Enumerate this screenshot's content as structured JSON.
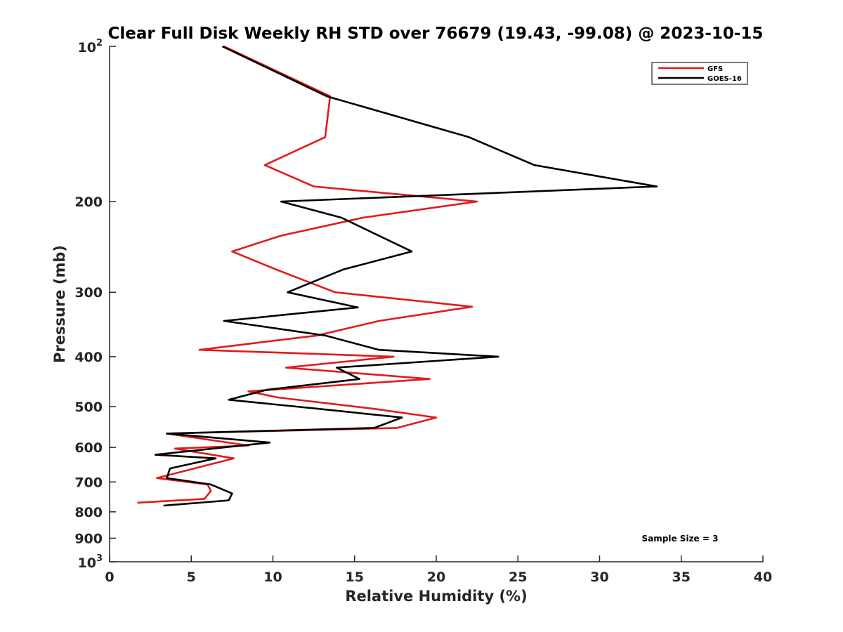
{
  "chart_data": {
    "type": "line",
    "title": "Clear Full Disk Weekly RH STD over 76679 (19.43, -99.08) @ 2023-10-15",
    "xlabel": "Relative Humidity (%)",
    "ylabel": "Pressure (mb)",
    "xlim": [
      0,
      40
    ],
    "ylim": [
      100,
      1000
    ],
    "y_scale": "log",
    "y_reversed": true,
    "x_ticks": [
      "0",
      "5",
      "10",
      "15",
      "20",
      "25",
      "30",
      "35",
      "40"
    ],
    "y_ticks": [
      {
        "value": 100,
        "base": "10",
        "exp": "2"
      },
      {
        "value": 200,
        "label": "200"
      },
      {
        "value": 300,
        "label": "300"
      },
      {
        "value": 400,
        "label": "400"
      },
      {
        "value": 500,
        "label": "500"
      },
      {
        "value": 600,
        "label": "600"
      },
      {
        "value": 700,
        "label": "700"
      },
      {
        "value": 800,
        "label": "800"
      },
      {
        "value": 900,
        "label": "900"
      },
      {
        "value": 1000,
        "base": "10",
        "exp": "3"
      }
    ],
    "grid": false,
    "legend_position": "top-right",
    "annotation": "Sample Size = 3",
    "series": [
      {
        "name": "GFS",
        "color": "#e31a1c",
        "points": [
          [
            7.0,
            100
          ],
          [
            13.5,
            125
          ],
          [
            13.2,
            150
          ],
          [
            9.5,
            170
          ],
          [
            12.5,
            187
          ],
          [
            22.5,
            200
          ],
          [
            15.5,
            215
          ],
          [
            10.5,
            233
          ],
          [
            7.5,
            250
          ],
          [
            10.2,
            271
          ],
          [
            13.8,
            300
          ],
          [
            22.2,
            320
          ],
          [
            16.5,
            341
          ],
          [
            12.7,
            364
          ],
          [
            5.5,
            388
          ],
          [
            17.4,
            400
          ],
          [
            10.8,
            420
          ],
          [
            19.6,
            442
          ],
          [
            8.5,
            467
          ],
          [
            10.3,
            480
          ],
          [
            16.2,
            505
          ],
          [
            20.0,
            525
          ],
          [
            17.6,
            550
          ],
          [
            3.5,
            564
          ],
          [
            8.5,
            595
          ],
          [
            4.0,
            603
          ],
          [
            7.6,
            630
          ],
          [
            2.9,
            688
          ],
          [
            6.0,
            708
          ],
          [
            6.2,
            729
          ],
          [
            5.8,
            755
          ],
          [
            1.7,
            768
          ]
        ]
      },
      {
        "name": "GOES-16",
        "color": "#000000",
        "points": [
          [
            6.9,
            100
          ],
          [
            13.3,
            125
          ],
          [
            22.0,
            150
          ],
          [
            26.0,
            170
          ],
          [
            33.5,
            187
          ],
          [
            10.5,
            200
          ],
          [
            14.2,
            215
          ],
          [
            18.5,
            250
          ],
          [
            14.3,
            271
          ],
          [
            10.9,
            300
          ],
          [
            15.2,
            321
          ],
          [
            7.0,
            341
          ],
          [
            13.2,
            364
          ],
          [
            16.5,
            388
          ],
          [
            23.8,
            400
          ],
          [
            13.9,
            420
          ],
          [
            15.3,
            442
          ],
          [
            9.6,
            464
          ],
          [
            7.3,
            485
          ],
          [
            12.8,
            505
          ],
          [
            17.9,
            525
          ],
          [
            16.2,
            550
          ],
          [
            3.5,
            564
          ],
          [
            9.8,
            587
          ],
          [
            2.8,
            620
          ],
          [
            6.5,
            630
          ],
          [
            3.7,
            659
          ],
          [
            3.5,
            688
          ],
          [
            6.2,
            708
          ],
          [
            7.5,
            737
          ],
          [
            7.3,
            760
          ],
          [
            3.3,
            778
          ]
        ]
      }
    ]
  }
}
